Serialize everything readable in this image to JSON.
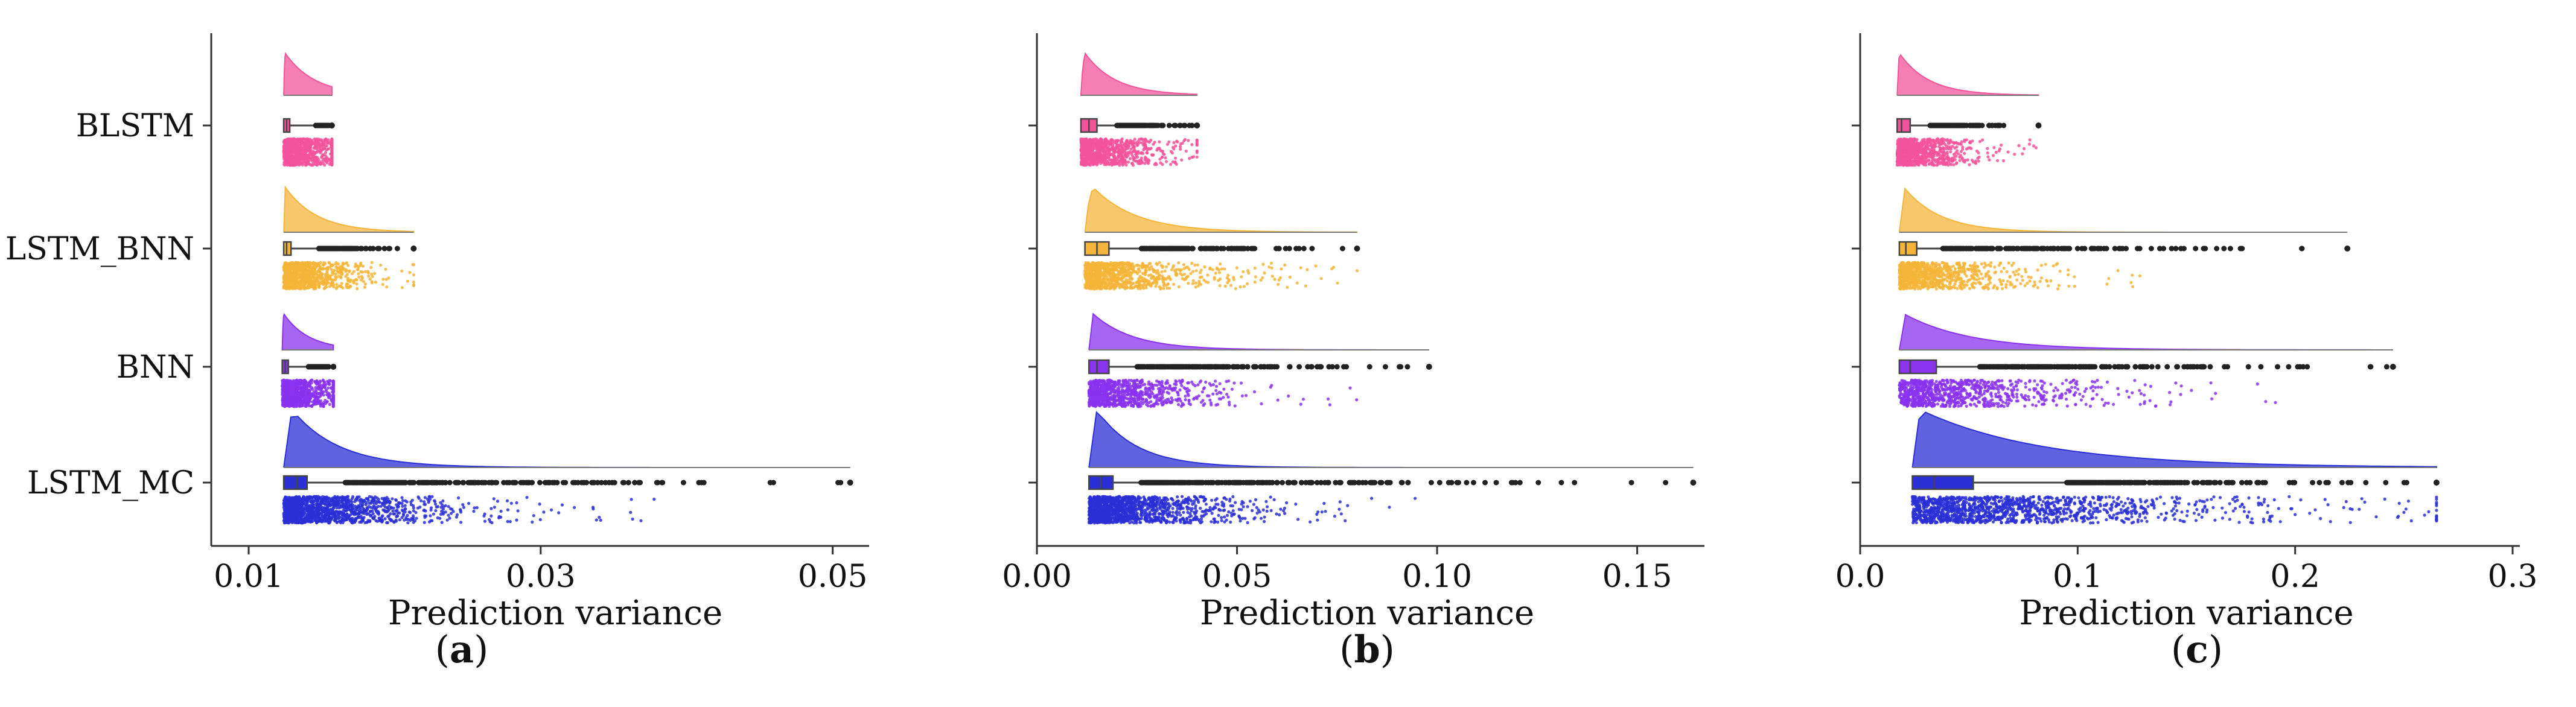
{
  "figure": {
    "ylabels": [
      "BLSTM",
      "LSTM_BNN",
      "BNN",
      "LSTM_MC"
    ],
    "colors": {
      "BLSTM": "#f2549a",
      "LSTM_BNN": "#f4b53a",
      "BNN": "#8a33ee",
      "LSTM_MC": "#2a2fd6",
      "box_outline": "#444444",
      "outlier": "#222222"
    }
  },
  "chart_data": [
    {
      "type": "raincloud",
      "panel": "a",
      "caption": "a",
      "xlabel": "Prediction variance",
      "xlim": [
        0.01,
        0.052
      ],
      "xticks": [
        0.01,
        0.03,
        0.05
      ],
      "xtick_labels": [
        "0.01",
        "0.03",
        "0.05"
      ],
      "orientation": "horizontal",
      "series": [
        {
          "name": "BLSTM",
          "mode": 0.0125,
          "q1": 0.0124,
          "median": 0.0126,
          "q3": 0.0128,
          "whisker_high": 0.0146,
          "max": 0.0157
        },
        {
          "name": "LSTM_BNN",
          "mode": 0.0125,
          "q1": 0.0124,
          "median": 0.0126,
          "q3": 0.0129,
          "whisker_high": 0.0148,
          "max": 0.0213
        },
        {
          "name": "BNN",
          "mode": 0.0124,
          "q1": 0.0123,
          "median": 0.0125,
          "q3": 0.0127,
          "whisker_high": 0.0141,
          "max": 0.0158
        },
        {
          "name": "LSTM_MC",
          "mode": 0.013,
          "q1": 0.0124,
          "median": 0.0133,
          "q3": 0.014,
          "whisker_high": 0.0166,
          "max": 0.0512
        }
      ]
    },
    {
      "type": "raincloud",
      "panel": "b",
      "caption": "b",
      "xlabel": "Prediction variance",
      "xlim": [
        0.0,
        0.165
      ],
      "xticks": [
        0.0,
        0.05,
        0.1,
        0.15
      ],
      "xtick_labels": [
        "0.00",
        "0.05",
        "0.10",
        "0.15"
      ],
      "orientation": "horizontal",
      "series": [
        {
          "name": "BLSTM",
          "mode": 0.012,
          "q1": 0.011,
          "median": 0.013,
          "q3": 0.015,
          "whisker_high": 0.02,
          "max": 0.04
        },
        {
          "name": "LSTM_BNN",
          "mode": 0.014,
          "q1": 0.012,
          "median": 0.015,
          "q3": 0.018,
          "whisker_high": 0.026,
          "max": 0.08
        },
        {
          "name": "BNN",
          "mode": 0.014,
          "q1": 0.013,
          "median": 0.015,
          "q3": 0.018,
          "whisker_high": 0.025,
          "max": 0.098
        },
        {
          "name": "LSTM_MC",
          "mode": 0.015,
          "q1": 0.013,
          "median": 0.016,
          "q3": 0.019,
          "whisker_high": 0.026,
          "max": 0.164
        }
      ]
    },
    {
      "type": "raincloud",
      "panel": "c",
      "caption": "c",
      "xlabel": "Prediction variance",
      "xlim": [
        0.0,
        0.3
      ],
      "xticks": [
        0.0,
        0.1,
        0.2,
        0.3
      ],
      "xtick_labels": [
        "0.0",
        "0.1",
        "0.2",
        "0.3"
      ],
      "orientation": "horizontal",
      "series": [
        {
          "name": "BLSTM",
          "mode": 0.018,
          "q1": 0.017,
          "median": 0.019,
          "q3": 0.023,
          "whisker_high": 0.032,
          "max": 0.082
        },
        {
          "name": "LSTM_BNN",
          "mode": 0.02,
          "q1": 0.018,
          "median": 0.021,
          "q3": 0.026,
          "whisker_high": 0.038,
          "max": 0.224
        },
        {
          "name": "BNN",
          "mode": 0.02,
          "q1": 0.018,
          "median": 0.023,
          "q3": 0.035,
          "whisker_high": 0.055,
          "max": 0.245
        },
        {
          "name": "LSTM_MC",
          "mode": 0.028,
          "q1": 0.024,
          "median": 0.034,
          "q3": 0.052,
          "whisker_high": 0.095,
          "max": 0.265
        }
      ]
    }
  ]
}
